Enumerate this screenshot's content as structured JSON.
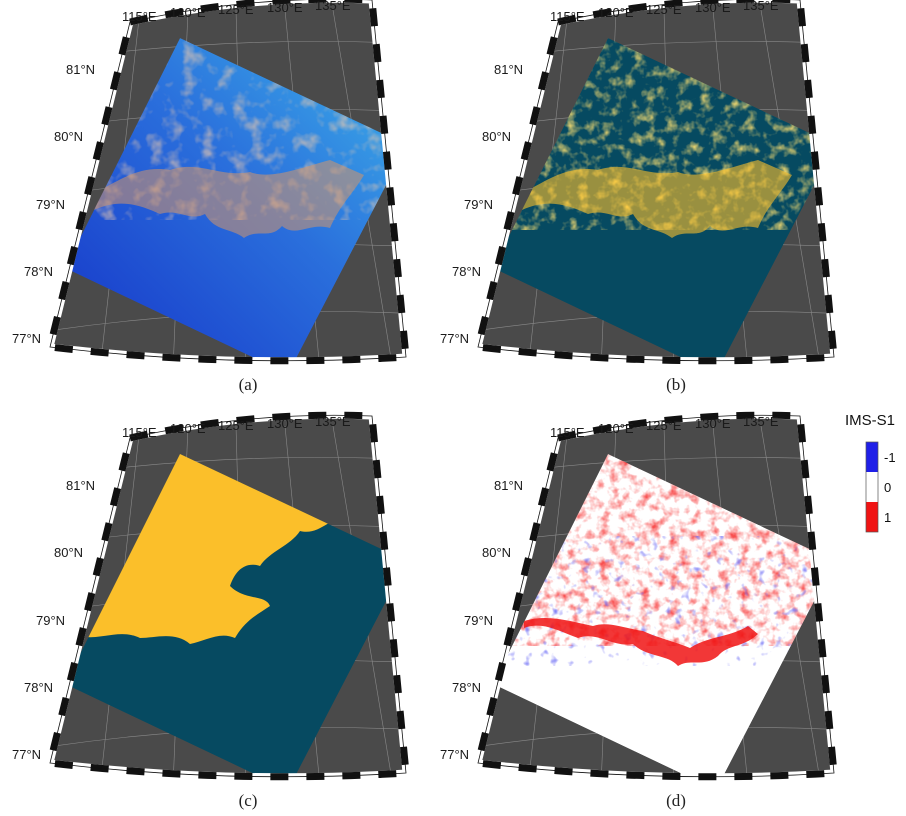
{
  "figure": {
    "panels": [
      {
        "id": "a",
        "label": "(a)",
        "content": "rgb-composite",
        "lat_labels": [
          "81°N",
          "80°N",
          "79°N",
          "78°N",
          "77°N"
        ],
        "lon_labels": [
          "115°E",
          "120°E",
          "125°E",
          "130°E",
          "135°E"
        ]
      },
      {
        "id": "b",
        "label": "(b)",
        "content": "binary-classification",
        "lat_labels": [
          "81°N",
          "80°N",
          "79°N",
          "78°N",
          "77°N"
        ],
        "lon_labels": [
          "115°E",
          "120°E",
          "125°E",
          "130°E",
          "135°E"
        ]
      },
      {
        "id": "c",
        "label": "(c)",
        "content": "binary-reference",
        "lat_labels": [
          "81°N",
          "80°N",
          "79°N",
          "78°N",
          "77°N"
        ],
        "lon_labels": [
          "115°E",
          "120°E",
          "125°E",
          "130°E",
          "135°E"
        ]
      },
      {
        "id": "d",
        "label": "(d)",
        "content": "difference",
        "lat_labels": [
          "81°N",
          "80°N",
          "79°N",
          "78°N",
          "77°N"
        ],
        "lon_labels": [
          "115°E",
          "120°E",
          "125°E",
          "130°E",
          "135°E"
        ]
      }
    ],
    "colorbar": {
      "title": "IMS-S1",
      "entries": [
        {
          "label": "-1",
          "color": "#1f1fe8"
        },
        {
          "label": "0",
          "color": "#ffffff"
        },
        {
          "label": "1",
          "color": "#f01414"
        }
      ]
    },
    "colors": {
      "land_background": "#4a4a4a",
      "ice_class": "#fbbf2a",
      "water_class": "#064a61",
      "frame_dark": "#111111",
      "frame_light": "#ffffff",
      "grid_line": "#8a8a8a",
      "rgb_deep": "#1533c8",
      "rgb_light": "#38a8e8",
      "rgb_ice": "#d4956a"
    }
  }
}
